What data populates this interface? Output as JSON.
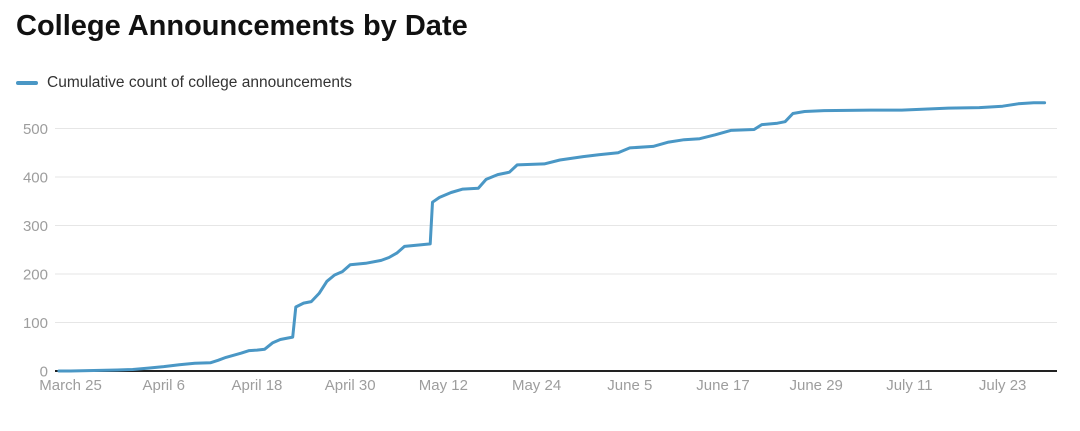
{
  "header": {
    "title": "College Announcements by Date"
  },
  "legend": {
    "label": "Cumulative count of college announcements",
    "swatch_color": "#4a97c5"
  },
  "chart_data": {
    "type": "line",
    "title": "College Announcements by Date",
    "xlabel": "",
    "ylabel": "",
    "grid": "horizontal",
    "legend_position": "top-left",
    "line_color": "#4a97c5",
    "grid_color": "#e6e6e6",
    "zero_axis_color": "#222222",
    "tick_label_color": "#9d9d9d",
    "y_axis": {
      "ticks": [
        0,
        100,
        200,
        300,
        400,
        500
      ],
      "range": [
        0,
        570
      ]
    },
    "x_axis": {
      "unit": "days since March 25",
      "range_days": [
        -2,
        127
      ],
      "ticks": [
        {
          "label": "March 25",
          "day": 0
        },
        {
          "label": "April 6",
          "day": 12
        },
        {
          "label": "April 18",
          "day": 24
        },
        {
          "label": "April 30",
          "day": 36
        },
        {
          "label": "May 12",
          "day": 48
        },
        {
          "label": "May 24",
          "day": 60
        },
        {
          "label": "June 5",
          "day": 72
        },
        {
          "label": "June 17",
          "day": 84
        },
        {
          "label": "June 29",
          "day": 96
        },
        {
          "label": "July 11",
          "day": 108
        },
        {
          "label": "July 23",
          "day": 120
        }
      ]
    },
    "series": [
      {
        "name": "Cumulative count of college announcements",
        "points_day_value": [
          [
            -1.5,
            0
          ],
          [
            0,
            0
          ],
          [
            3,
            1
          ],
          [
            6,
            2
          ],
          [
            8,
            3
          ],
          [
            10,
            6
          ],
          [
            12,
            9
          ],
          [
            14,
            13
          ],
          [
            16,
            16
          ],
          [
            18,
            17
          ],
          [
            19,
            22
          ],
          [
            20,
            28
          ],
          [
            22,
            37
          ],
          [
            23,
            42
          ],
          [
            24,
            43
          ],
          [
            25,
            45
          ],
          [
            26,
            58
          ],
          [
            27,
            65
          ],
          [
            28,
            68
          ],
          [
            28.6,
            70
          ],
          [
            29,
            132
          ],
          [
            30,
            140
          ],
          [
            31,
            143
          ],
          [
            32,
            160
          ],
          [
            33,
            185
          ],
          [
            34,
            198
          ],
          [
            35,
            205
          ],
          [
            36,
            219
          ],
          [
            38,
            222
          ],
          [
            40,
            228
          ],
          [
            41,
            234
          ],
          [
            42,
            243
          ],
          [
            43,
            257
          ],
          [
            45,
            260
          ],
          [
            46.3,
            262
          ],
          [
            46.6,
            348
          ],
          [
            47.5,
            358
          ],
          [
            49,
            368
          ],
          [
            50.5,
            375
          ],
          [
            52.5,
            377
          ],
          [
            53.5,
            395
          ],
          [
            55,
            405
          ],
          [
            56.5,
            410
          ],
          [
            57.5,
            425
          ],
          [
            61,
            427
          ],
          [
            63,
            435
          ],
          [
            66,
            442
          ],
          [
            68,
            446
          ],
          [
            70.5,
            450
          ],
          [
            72,
            460
          ],
          [
            75,
            463
          ],
          [
            77,
            472
          ],
          [
            79,
            477
          ],
          [
            81,
            479
          ],
          [
            83,
            487
          ],
          [
            85,
            496
          ],
          [
            88,
            498
          ],
          [
            89,
            508
          ],
          [
            91,
            511
          ],
          [
            92,
            514
          ],
          [
            93,
            531
          ],
          [
            94.5,
            535
          ],
          [
            97,
            537
          ],
          [
            103,
            538
          ],
          [
            107,
            538
          ],
          [
            110,
            540
          ],
          [
            113,
            542
          ],
          [
            117,
            543
          ],
          [
            120,
            546
          ],
          [
            122,
            551
          ],
          [
            124,
            553
          ],
          [
            125.4,
            553
          ]
        ]
      }
    ]
  }
}
